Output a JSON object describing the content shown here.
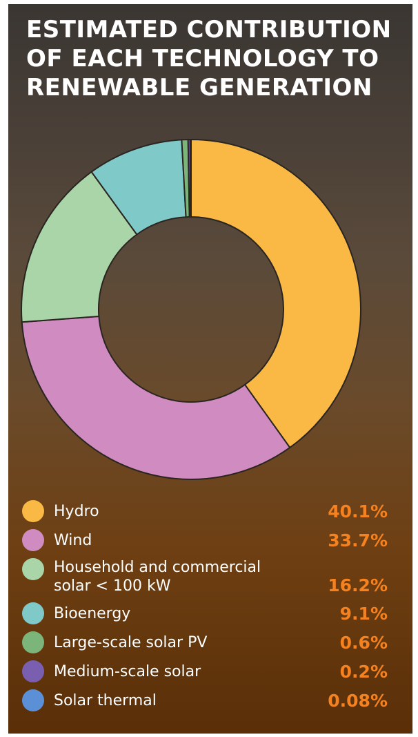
{
  "chart_data": {
    "type": "donut",
    "title": "ESTIMATED CONTRIBUTION OF EACH TECHNOLOGY TO RENEWABLE GENERATION",
    "categories": [
      "Hydro",
      "Wind",
      "Household and commercial solar < 100 kW",
      "Bioenergy",
      "Large-scale solar PV",
      "Medium-scale solar",
      "Solar thermal"
    ],
    "values": [
      40.1,
      33.7,
      16.2,
      9.1,
      0.6,
      0.2,
      0.08
    ],
    "value_labels": [
      "40.1%",
      "33.7%",
      "16.2%",
      "9.1%",
      "0.6%",
      "0.2%",
      "0.08%"
    ],
    "colors": [
      "#f9b944",
      "#d08bc0",
      "#a9d5a9",
      "#7fcac9",
      "#7cb57a",
      "#7a5fb0",
      "#5b8fd6"
    ]
  }
}
